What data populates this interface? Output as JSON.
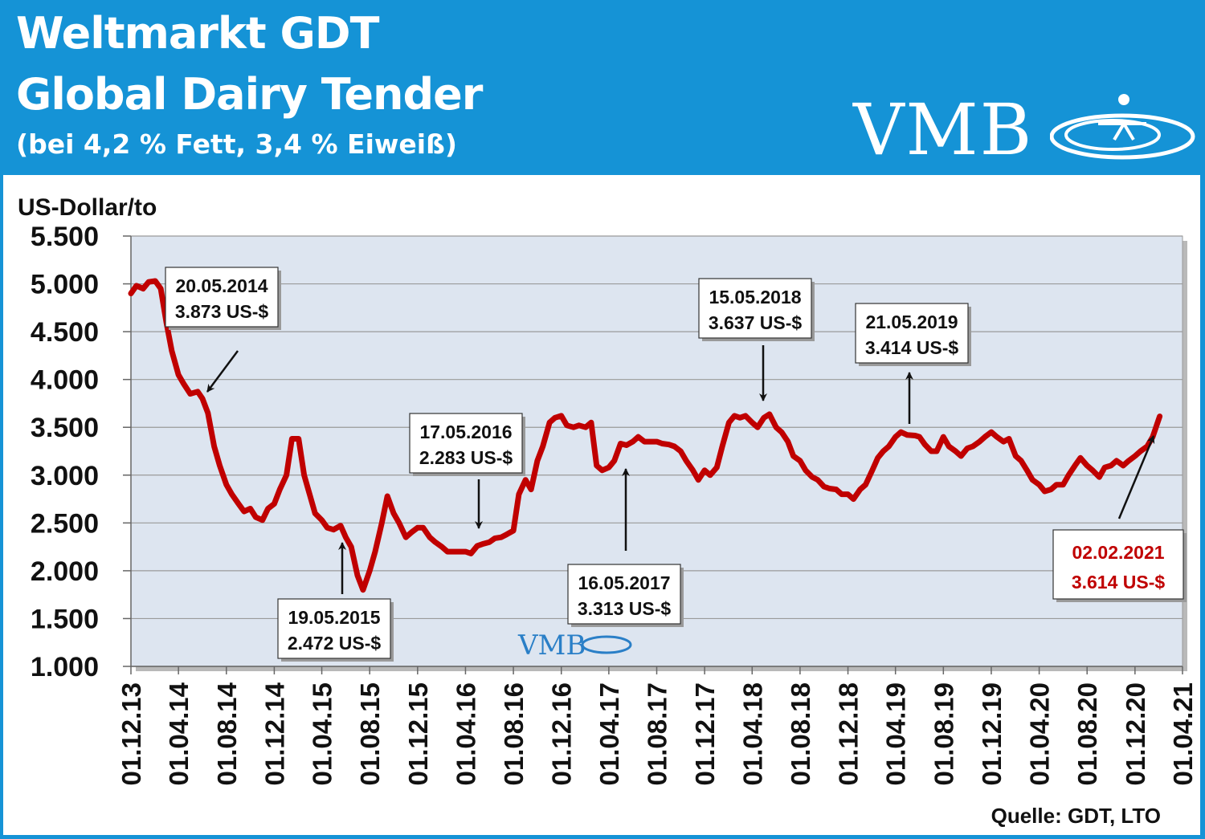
{
  "header": {
    "title_line1": "Weltmarkt GDT",
    "title_line2": "Global Dairy Tender",
    "subtitle": "(bei 4,2 % Fett, 3,4 % Eiweiß)",
    "logo_text": "VMB"
  },
  "watermark": {
    "text": "VMB"
  },
  "source": "Quelle: GDT, LTO",
  "colors": {
    "header_bg": "#1593d6",
    "plot_bg": "#dde5f0",
    "line": "#c00000",
    "highlight_text": "#c00000"
  },
  "chart_data": {
    "type": "line",
    "ylabel": "US-Dollar/to",
    "ylim": [
      1000,
      5500
    ],
    "yticks": [
      1000,
      1500,
      2000,
      2500,
      3000,
      3500,
      4000,
      4500,
      5000,
      5500
    ],
    "ytick_labels": [
      "1.000",
      "1.500",
      "2.000",
      "2.500",
      "3.000",
      "3.500",
      "4.000",
      "4.500",
      "5.000",
      "5.500"
    ],
    "xlim": [
      "2013-12-01",
      "2021-04-01"
    ],
    "xticks": [
      "2013-12-01",
      "2014-04-01",
      "2014-08-01",
      "2014-12-01",
      "2015-04-01",
      "2015-08-01",
      "2015-12-01",
      "2016-04-01",
      "2016-08-01",
      "2016-12-01",
      "2017-04-01",
      "2017-08-01",
      "2017-12-01",
      "2018-04-01",
      "2018-08-01",
      "2018-12-01",
      "2019-04-01",
      "2019-08-01",
      "2019-12-01",
      "2020-04-01",
      "2020-08-01",
      "2020-12-01",
      "2021-04-01"
    ],
    "xtick_labels": [
      "01.12.13",
      "01.04.14",
      "01.08.14",
      "01.12.14",
      "01.04.15",
      "01.08.15",
      "01.12.15",
      "01.04.16",
      "01.08.16",
      "01.12.16",
      "01.04.17",
      "01.08.17",
      "01.12.17",
      "01.04.18",
      "01.08.18",
      "01.12.18",
      "01.04.19",
      "01.08.19",
      "01.12.19",
      "01.04.20",
      "01.08.20",
      "01.12.20",
      "01.04.21"
    ],
    "grid": true,
    "series": [
      {
        "x": [
          "2013-12-01",
          "2013-12-15",
          "2014-01-01",
          "2014-01-15",
          "2014-02-01",
          "2014-02-15",
          "2014-03-01",
          "2014-03-15",
          "2014-04-01",
          "2014-04-15",
          "2014-05-01",
          "2014-05-20",
          "2014-06-01",
          "2014-06-15",
          "2014-07-01",
          "2014-07-15",
          "2014-08-01",
          "2014-08-15",
          "2014-09-01",
          "2014-09-15",
          "2014-10-01",
          "2014-10-15",
          "2014-11-01",
          "2014-11-15",
          "2014-12-01",
          "2014-12-15",
          "2015-01-01",
          "2015-01-15",
          "2015-02-01",
          "2015-02-15",
          "2015-03-01",
          "2015-03-15",
          "2015-04-01",
          "2015-04-15",
          "2015-05-01",
          "2015-05-19",
          "2015-06-01",
          "2015-06-15",
          "2015-07-01",
          "2015-07-15",
          "2015-08-01",
          "2015-08-15",
          "2015-09-01",
          "2015-09-15",
          "2015-10-01",
          "2015-10-15",
          "2015-11-01",
          "2015-11-15",
          "2015-12-01",
          "2015-12-15",
          "2016-01-01",
          "2016-01-15",
          "2016-02-01",
          "2016-02-15",
          "2016-03-01",
          "2016-03-15",
          "2016-04-01",
          "2016-04-15",
          "2016-05-01",
          "2016-05-17",
          "2016-06-01",
          "2016-06-15",
          "2016-07-01",
          "2016-07-15",
          "2016-08-01",
          "2016-08-15",
          "2016-09-01",
          "2016-09-15",
          "2016-10-01",
          "2016-10-15",
          "2016-11-01",
          "2016-11-15",
          "2016-12-01",
          "2016-12-15",
          "2017-01-01",
          "2017-01-15",
          "2017-02-01",
          "2017-02-15",
          "2017-03-01",
          "2017-03-15",
          "2017-04-01",
          "2017-04-15",
          "2017-05-01",
          "2017-05-16",
          "2017-06-01",
          "2017-06-15",
          "2017-07-01",
          "2017-07-15",
          "2017-08-01",
          "2017-08-15",
          "2017-09-01",
          "2017-09-15",
          "2017-10-01",
          "2017-10-15",
          "2017-11-01",
          "2017-11-15",
          "2017-12-01",
          "2017-12-15",
          "2018-01-01",
          "2018-01-15",
          "2018-02-01",
          "2018-02-15",
          "2018-03-01",
          "2018-03-15",
          "2018-04-01",
          "2018-04-15",
          "2018-05-01",
          "2018-05-15",
          "2018-06-01",
          "2018-06-15",
          "2018-07-01",
          "2018-07-15",
          "2018-08-01",
          "2018-08-15",
          "2018-09-01",
          "2018-09-15",
          "2018-10-01",
          "2018-10-15",
          "2018-11-01",
          "2018-11-15",
          "2018-12-01",
          "2018-12-15",
          "2019-01-01",
          "2019-01-15",
          "2019-02-01",
          "2019-02-15",
          "2019-03-01",
          "2019-03-15",
          "2019-04-01",
          "2019-04-15",
          "2019-05-01",
          "2019-05-21",
          "2019-06-01",
          "2019-06-15",
          "2019-07-01",
          "2019-07-15",
          "2019-08-01",
          "2019-08-15",
          "2019-09-01",
          "2019-09-15",
          "2019-10-01",
          "2019-10-15",
          "2019-11-01",
          "2019-11-15",
          "2019-12-01",
          "2019-12-15",
          "2020-01-01",
          "2020-01-15",
          "2020-02-01",
          "2020-02-15",
          "2020-03-01",
          "2020-03-15",
          "2020-04-01",
          "2020-04-15",
          "2020-05-01",
          "2020-05-15",
          "2020-06-01",
          "2020-06-15",
          "2020-07-01",
          "2020-07-15",
          "2020-08-01",
          "2020-08-15",
          "2020-09-01",
          "2020-09-15",
          "2020-10-01",
          "2020-10-15",
          "2020-11-01",
          "2020-11-15",
          "2020-12-01",
          "2020-12-15",
          "2021-01-01",
          "2021-01-15",
          "2021-02-02"
        ],
        "values": [
          4900,
          4980,
          4950,
          5020,
          5030,
          4950,
          4600,
          4300,
          4050,
          3950,
          3850,
          3873,
          3800,
          3650,
          3300,
          3100,
          2900,
          2800,
          2700,
          2620,
          2650,
          2560,
          2530,
          2650,
          2700,
          2850,
          3000,
          3380,
          3380,
          3000,
          2800,
          2600,
          2530,
          2450,
          2430,
          2472,
          2350,
          2250,
          1950,
          1800,
          2000,
          2200,
          2500,
          2780,
          2600,
          2500,
          2350,
          2400,
          2450,
          2450,
          2350,
          2300,
          2250,
          2200,
          2200,
          2200,
          2200,
          2180,
          2260,
          2283,
          2300,
          2340,
          2350,
          2380,
          2420,
          2800,
          2950,
          2850,
          3150,
          3300,
          3550,
          3600,
          3620,
          3520,
          3500,
          3520,
          3500,
          3550,
          3100,
          3050,
          3080,
          3150,
          3330,
          3313,
          3350,
          3400,
          3350,
          3350,
          3350,
          3330,
          3320,
          3300,
          3250,
          3150,
          3050,
          2950,
          3050,
          3000,
          3080,
          3300,
          3550,
          3620,
          3600,
          3620,
          3550,
          3500,
          3600,
          3637,
          3500,
          3450,
          3350,
          3200,
          3150,
          3050,
          2980,
          2950,
          2880,
          2860,
          2850,
          2800,
          2800,
          2750,
          2850,
          2900,
          3050,
          3180,
          3250,
          3300,
          3400,
          3450,
          3420,
          3414,
          3400,
          3320,
          3250,
          3250,
          3400,
          3300,
          3250,
          3200,
          3280,
          3300,
          3350,
          3400,
          3450,
          3400,
          3350,
          3380,
          3200,
          3150,
          3050,
          2950,
          2900,
          2830,
          2850,
          2900,
          2900,
          3000,
          3100,
          3180,
          3100,
          3050,
          2980,
          3080,
          3100,
          3150,
          3100,
          3150,
          3200,
          3250,
          3300,
          3400,
          3614
        ]
      }
    ],
    "annotations": [
      {
        "date": "20.05.2014",
        "value": "3.873 US-$"
      },
      {
        "date": "19.05.2015",
        "value": "2.472 US-$"
      },
      {
        "date": "17.05.2016",
        "value": "2.283 US-$"
      },
      {
        "date": "16.05.2017",
        "value": "3.313 US-$"
      },
      {
        "date": "15.05.2018",
        "value": "3.637 US-$"
      },
      {
        "date": "21.05.2019",
        "value": "3.414 US-$"
      },
      {
        "date": "02.02.2021",
        "value": "3.614 US-$",
        "highlight": true
      }
    ]
  }
}
